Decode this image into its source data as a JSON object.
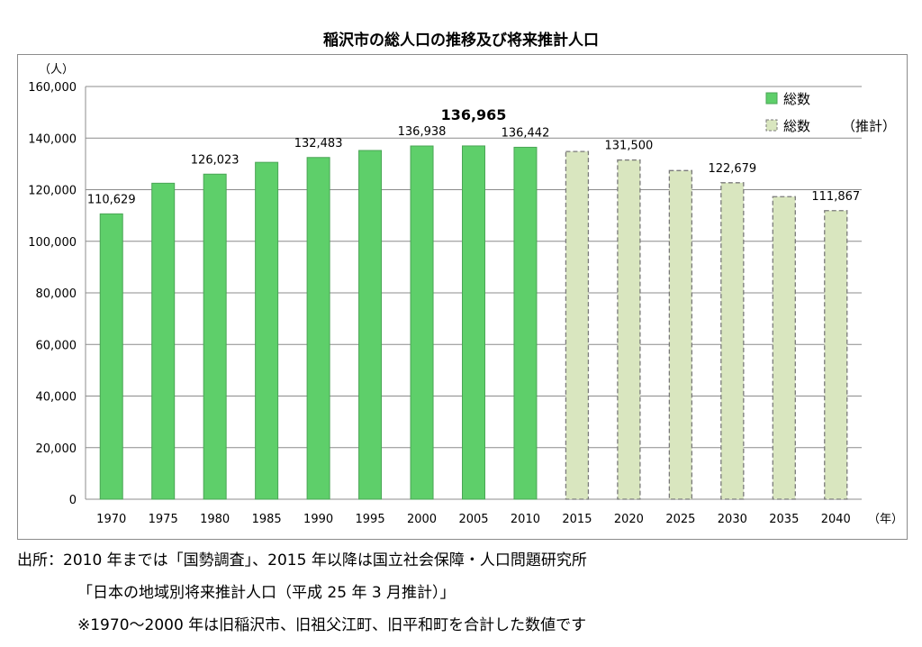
{
  "chart_title": "稲沢市の総人口の推移及び将来推計人口",
  "chart_data": {
    "type": "bar",
    "title": "稲沢市の総人口の推移及び将来推計人口",
    "ylabel": "（人）",
    "xlabel": "（年）",
    "ylim": [
      0,
      160000
    ],
    "yticks": [
      "0",
      "20,000",
      "40,000",
      "60,000",
      "80,000",
      "100,000",
      "120,000",
      "140,000",
      "160,000"
    ],
    "grid": true,
    "categories": [
      "1970",
      "1975",
      "1980",
      "1985",
      "1990",
      "1995",
      "2000",
      "2005",
      "2010",
      "2015",
      "2020",
      "2025",
      "2030",
      "2035",
      "2040"
    ],
    "series": [
      {
        "name": "総数",
        "color": "#5ecf6a",
        "style": "solid",
        "values": [
          110629,
          122500,
          126023,
          130600,
          132483,
          135200,
          136938,
          136965,
          136442,
          null,
          null,
          null,
          null,
          null,
          null
        ]
      },
      {
        "name": "総数　（推計）",
        "color": "#d9e6bf",
        "style": "dashed",
        "values": [
          null,
          null,
          null,
          null,
          null,
          null,
          null,
          null,
          null,
          134800,
          131500,
          127400,
          122679,
          117300,
          111867
        ]
      }
    ],
    "data_labels": [
      {
        "index": 0,
        "text": "110,629"
      },
      {
        "index": 2,
        "text": "126,023"
      },
      {
        "index": 4,
        "text": "132,483"
      },
      {
        "index": 6,
        "text": "136,938"
      },
      {
        "index": 7,
        "text": "136,965",
        "bold": true
      },
      {
        "index": 8,
        "text": "136,442"
      },
      {
        "index": 10,
        "text": "131,500"
      },
      {
        "index": 12,
        "text": "122,679"
      },
      {
        "index": 14,
        "text": "111,867"
      }
    ],
    "legend": {
      "position": "top-right",
      "items": [
        {
          "label": "総数",
          "suffix": ""
        },
        {
          "label": "総数",
          "suffix": "（推計）"
        }
      ]
    }
  },
  "footnotes": [
    "出所：2010 年までは「国勢調査」、2015 年以降は国立社会保障・人口問題研究所",
    "「日本の地域別将来推計人口（平成 25 年 3 月推計）」",
    "※1970～2000 年は旧稲沢市、旧祖父江町、旧平和町を合計した数値です"
  ]
}
